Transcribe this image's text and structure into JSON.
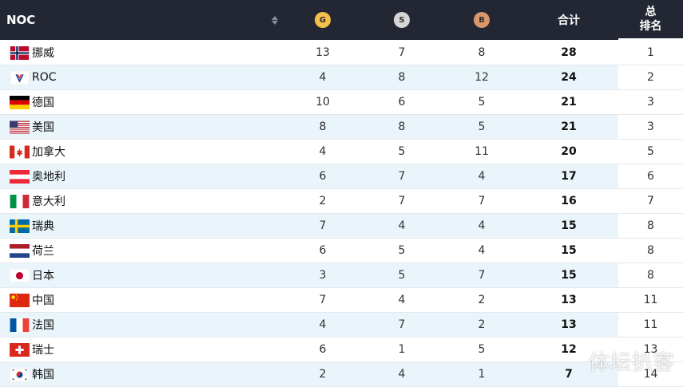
{
  "header": {
    "noc": "NOC",
    "gold": "G",
    "silver": "S",
    "bronze": "B",
    "total": "合计",
    "rank_line1": "总",
    "rank_line2": "排名"
  },
  "rows": [
    {
      "flag": "norway-flag-icon",
      "name": "挪威",
      "gold": "13",
      "silver": "7",
      "bronze": "8",
      "total": "28",
      "rank": "1"
    },
    {
      "flag": "roc-flag-icon",
      "name": "ROC",
      "gold": "4",
      "silver": "8",
      "bronze": "12",
      "total": "24",
      "rank": "2"
    },
    {
      "flag": "germany-flag-icon",
      "name": "德国",
      "gold": "10",
      "silver": "6",
      "bronze": "5",
      "total": "21",
      "rank": "3"
    },
    {
      "flag": "usa-flag-icon",
      "name": "美国",
      "gold": "8",
      "silver": "8",
      "bronze": "5",
      "total": "21",
      "rank": "3"
    },
    {
      "flag": "canada-flag-icon",
      "name": "加拿大",
      "gold": "4",
      "silver": "5",
      "bronze": "11",
      "total": "20",
      "rank": "5"
    },
    {
      "flag": "austria-flag-icon",
      "name": "奥地利",
      "gold": "6",
      "silver": "7",
      "bronze": "4",
      "total": "17",
      "rank": "6"
    },
    {
      "flag": "italy-flag-icon",
      "name": "意大利",
      "gold": "2",
      "silver": "7",
      "bronze": "7",
      "total": "16",
      "rank": "7"
    },
    {
      "flag": "sweden-flag-icon",
      "name": "瑞典",
      "gold": "7",
      "silver": "4",
      "bronze": "4",
      "total": "15",
      "rank": "8"
    },
    {
      "flag": "netherlands-flag-icon",
      "name": "荷兰",
      "gold": "6",
      "silver": "5",
      "bronze": "4",
      "total": "15",
      "rank": "8"
    },
    {
      "flag": "japan-flag-icon",
      "name": "日本",
      "gold": "3",
      "silver": "5",
      "bronze": "7",
      "total": "15",
      "rank": "8"
    },
    {
      "flag": "china-flag-icon",
      "name": "中国",
      "gold": "7",
      "silver": "4",
      "bronze": "2",
      "total": "13",
      "rank": "11"
    },
    {
      "flag": "france-flag-icon",
      "name": "法国",
      "gold": "4",
      "silver": "7",
      "bronze": "2",
      "total": "13",
      "rank": "11"
    },
    {
      "flag": "switzerland-flag-icon",
      "name": "瑞士",
      "gold": "6",
      "silver": "1",
      "bronze": "5",
      "total": "12",
      "rank": "13"
    },
    {
      "flag": "korea-flag-icon",
      "name": "韩国",
      "gold": "2",
      "silver": "4",
      "bronze": "1",
      "total": "7",
      "rank": "14"
    }
  ],
  "watermark": "体坛扒客",
  "colors": {
    "header_bg": "#222733",
    "row_stripe": "#eaf5fb",
    "gold_medal": "#f5c04a",
    "silver_medal": "#d6d6d6",
    "bronze_medal": "#d9966a"
  }
}
